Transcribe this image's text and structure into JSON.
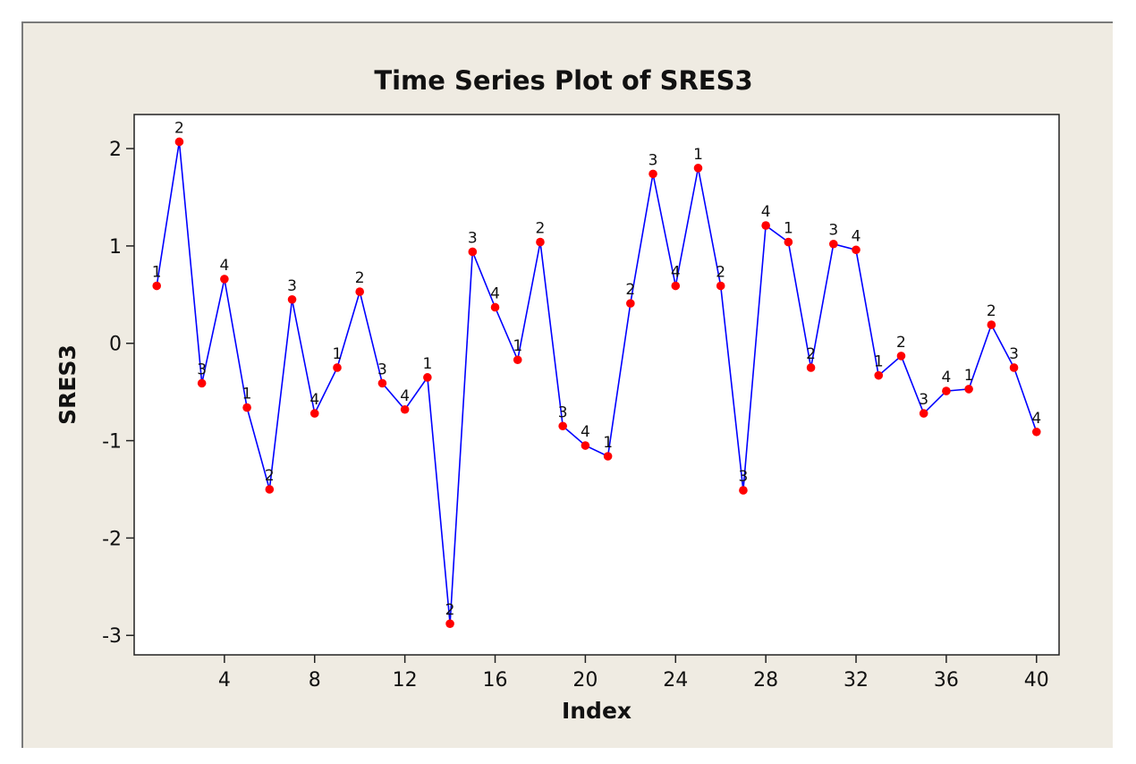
{
  "chart_data": {
    "type": "line",
    "title": "Time Series Plot of SRES3",
    "xlabel": "Index",
    "ylabel": "SRES3",
    "xlim": [
      0,
      41
    ],
    "ylim": [
      -3.2,
      2.35
    ],
    "xticks": [
      4,
      8,
      12,
      16,
      20,
      24,
      28,
      32,
      36,
      40
    ],
    "yticks": [
      -3,
      -2,
      -1,
      0,
      1,
      2
    ],
    "grid": false,
    "legend": "none",
    "colors": {
      "line": "#0000ff",
      "marker": "#ff0000",
      "background": "#efebe2",
      "plot_area": "#ffffff"
    },
    "series": [
      {
        "x": [
          1,
          2,
          3,
          4,
          5,
          6,
          7,
          8,
          9,
          10,
          11,
          12,
          13,
          14,
          15,
          16,
          17,
          18,
          19,
          20,
          21,
          22,
          23,
          24,
          25,
          26,
          27,
          28,
          29,
          30,
          31,
          32,
          33,
          34,
          35,
          36,
          37,
          38,
          39,
          40
        ],
        "values": [
          0.59,
          2.07,
          -0.41,
          0.66,
          -0.66,
          -1.5,
          0.45,
          -0.72,
          -0.25,
          0.53,
          -0.41,
          -0.68,
          -0.35,
          -2.88,
          0.94,
          0.37,
          -0.17,
          1.04,
          -0.85,
          -1.05,
          -1.16,
          0.41,
          1.74,
          0.59,
          1.8,
          0.59,
          -1.51,
          1.21,
          1.04,
          -0.25,
          1.02,
          0.96,
          -0.33,
          -0.13,
          -0.72,
          -0.49,
          -0.47,
          0.19,
          -0.25,
          -0.91
        ],
        "point_labels": [
          "1",
          "2",
          "3",
          "4",
          "1",
          "2",
          "3",
          "4",
          "1",
          "2",
          "3",
          "4",
          "1",
          "2",
          "3",
          "4",
          "1",
          "2",
          "3",
          "4",
          "1",
          "2",
          "3",
          "4",
          "1",
          "2",
          "3",
          "4",
          "1",
          "2",
          "3",
          "4",
          "1",
          "2",
          "3",
          "4",
          "1",
          "2",
          "3",
          "4"
        ]
      }
    ]
  }
}
